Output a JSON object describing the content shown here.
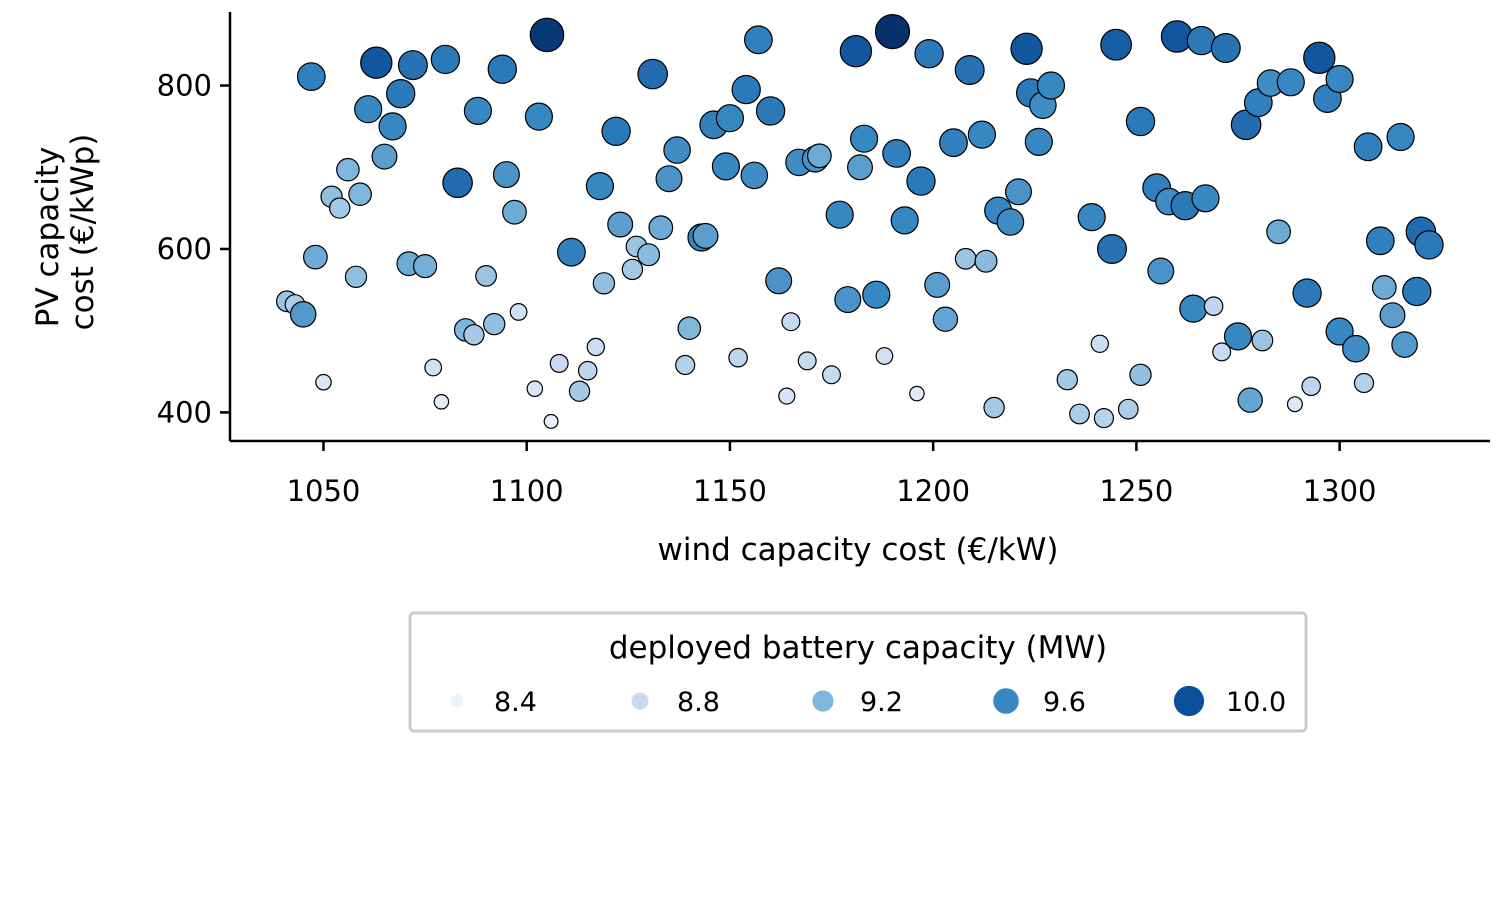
{
  "chart_data": {
    "type": "scatter",
    "xlabel": "wind capacity cost (€/kW)",
    "ylabel_lines": [
      "PV capacity",
      "cost (€/kWp)"
    ],
    "xlim": [
      1027,
      1337
    ],
    "ylim": [
      365,
      890
    ],
    "x_ticks": [
      1050,
      1100,
      1150,
      1200,
      1250,
      1300
    ],
    "y_ticks": [
      400,
      600,
      800
    ],
    "grid": false,
    "legend": {
      "title": "deployed battery capacity (MW)",
      "placement": "bottom-center",
      "entries": [
        {
          "label": "8.4",
          "value": 8.4
        },
        {
          "label": "8.8",
          "value": 8.8
        },
        {
          "label": "9.2",
          "value": 9.2
        },
        {
          "label": "9.6",
          "value": 9.6
        },
        {
          "label": "10.0",
          "value": 10.0
        }
      ]
    },
    "colors": {
      "8.3": "#f7fbff",
      "8.4": "#eaf2fb",
      "8.8": "#c6dbef",
      "9.2": "#7fb6db",
      "9.6": "#3787c2",
      "10.0": "#0b4f9a",
      "10.2": "#08306b",
      "edge": "#000000",
      "axis": "#000000",
      "legend_border": "#cccccc"
    },
    "value_range": [
      8.3,
      10.2
    ],
    "points": [
      [
        1041,
        536,
        9.05
      ],
      [
        1043,
        532,
        8.95
      ],
      [
        1045,
        520,
        9.45
      ],
      [
        1047,
        811,
        9.65
      ],
      [
        1048,
        590,
        9.3
      ],
      [
        1050,
        437,
        8.6
      ],
      [
        1052,
        664,
        9.1
      ],
      [
        1054,
        650,
        9.0
      ],
      [
        1056,
        697,
        9.2
      ],
      [
        1058,
        566,
        9.1
      ],
      [
        1059,
        667,
        9.2
      ],
      [
        1061,
        771,
        9.6
      ],
      [
        1063,
        828,
        9.95
      ],
      [
        1065,
        713,
        9.4
      ],
      [
        1067,
        750,
        9.6
      ],
      [
        1069,
        790,
        9.7
      ],
      [
        1071,
        582,
        9.3
      ],
      [
        1072,
        825,
        9.75
      ],
      [
        1075,
        579,
        9.25
      ],
      [
        1077,
        455,
        8.7
      ],
      [
        1079,
        413,
        8.5
      ],
      [
        1080,
        832,
        9.7
      ],
      [
        1083,
        681,
        9.8
      ],
      [
        1085,
        501,
        9.2
      ],
      [
        1087,
        495,
        9.0
      ],
      [
        1088,
        769,
        9.6
      ],
      [
        1090,
        567,
        9.05
      ],
      [
        1092,
        508,
        9.1
      ],
      [
        1094,
        820,
        9.7
      ],
      [
        1095,
        691,
        9.5
      ],
      [
        1097,
        645,
        9.3
      ],
      [
        1098,
        523,
        8.7
      ],
      [
        1102,
        429,
        8.6
      ],
      [
        1103,
        762,
        9.6
      ],
      [
        1105,
        862,
        10.15
      ],
      [
        1106,
        389,
        8.45
      ],
      [
        1108,
        460,
        8.8
      ],
      [
        1111,
        596,
        9.65
      ],
      [
        1113,
        426,
        9.0
      ],
      [
        1115,
        451,
        8.85
      ],
      [
        1117,
        480,
        8.75
      ],
      [
        1118,
        677,
        9.6
      ],
      [
        1119,
        558,
        9.1
      ],
      [
        1122,
        744,
        9.7
      ],
      [
        1123,
        630,
        9.4
      ],
      [
        1126,
        575,
        9.0
      ],
      [
        1127,
        603,
        9.05
      ],
      [
        1130,
        593,
        9.15
      ],
      [
        1131,
        814,
        9.8
      ],
      [
        1133,
        626,
        9.3
      ],
      [
        1135,
        686,
        9.5
      ],
      [
        1137,
        721,
        9.55
      ],
      [
        1139,
        458,
        8.9
      ],
      [
        1140,
        503,
        9.2
      ],
      [
        1143,
        614,
        9.6
      ],
      [
        1144,
        616,
        9.4
      ],
      [
        1146,
        752,
        9.65
      ],
      [
        1149,
        701,
        9.6
      ],
      [
        1150,
        760,
        9.6
      ],
      [
        1152,
        467,
        8.85
      ],
      [
        1154,
        795,
        9.7
      ],
      [
        1156,
        690,
        9.55
      ],
      [
        1157,
        856,
        9.65
      ],
      [
        1160,
        769,
        9.7
      ],
      [
        1162,
        561,
        9.5
      ],
      [
        1164,
        420,
        8.65
      ],
      [
        1165,
        511,
        8.8
      ],
      [
        1167,
        706,
        9.55
      ],
      [
        1169,
        463,
        8.8
      ],
      [
        1171,
        710,
        9.5
      ],
      [
        1172,
        714,
        9.3
      ],
      [
        1175,
        446,
        8.8
      ],
      [
        1177,
        642,
        9.6
      ],
      [
        1179,
        538,
        9.5
      ],
      [
        1181,
        842,
        9.95
      ],
      [
        1182,
        700,
        9.4
      ],
      [
        1183,
        735,
        9.6
      ],
      [
        1186,
        544,
        9.6
      ],
      [
        1188,
        469,
        8.7
      ],
      [
        1190,
        866,
        10.2
      ],
      [
        1191,
        717,
        9.65
      ],
      [
        1193,
        635,
        9.6
      ],
      [
        1196,
        423,
        8.5
      ],
      [
        1197,
        683,
        9.7
      ],
      [
        1199,
        839,
        9.7
      ],
      [
        1201,
        556,
        9.4
      ],
      [
        1203,
        514,
        9.35
      ],
      [
        1205,
        730,
        9.65
      ],
      [
        1208,
        588,
        9.05
      ],
      [
        1209,
        819,
        9.75
      ],
      [
        1212,
        740,
        9.6
      ],
      [
        1213,
        585,
        9.15
      ],
      [
        1215,
        406,
        9.0
      ],
      [
        1216,
        647,
        9.6
      ],
      [
        1219,
        633,
        9.55
      ],
      [
        1221,
        670,
        9.5
      ],
      [
        1223,
        845,
        9.95
      ],
      [
        1224,
        791,
        9.7
      ],
      [
        1227,
        776,
        9.55
      ],
      [
        1226,
        731,
        9.6
      ],
      [
        1229,
        800,
        9.6
      ],
      [
        1233,
        440,
        9.0
      ],
      [
        1236,
        398,
        8.95
      ],
      [
        1239,
        639,
        9.6
      ],
      [
        1241,
        484,
        8.75
      ],
      [
        1242,
        393,
        8.9
      ],
      [
        1244,
        600,
        9.75
      ],
      [
        1245,
        850,
        9.9
      ],
      [
        1248,
        404,
        8.95
      ],
      [
        1251,
        756,
        9.7
      ],
      [
        1251,
        446,
        9.1
      ],
      [
        1255,
        675,
        9.65
      ],
      [
        1256,
        573,
        9.5
      ],
      [
        1258,
        658,
        9.55
      ],
      [
        1260,
        860,
        9.95
      ],
      [
        1262,
        653,
        9.7
      ],
      [
        1264,
        527,
        9.6
      ],
      [
        1266,
        855,
        9.7
      ],
      [
        1267,
        662,
        9.6
      ],
      [
        1269,
        530,
        8.85
      ],
      [
        1271,
        474,
        8.8
      ],
      [
        1272,
        846,
        9.75
      ],
      [
        1275,
        493,
        9.6
      ],
      [
        1277,
        752,
        9.8
      ],
      [
        1278,
        415,
        9.35
      ],
      [
        1280,
        779,
        9.65
      ],
      [
        1281,
        488,
        9.05
      ],
      [
        1283,
        803,
        9.55
      ],
      [
        1285,
        621,
        9.3
      ],
      [
        1288,
        804,
        9.6
      ],
      [
        1289,
        410,
        8.55
      ],
      [
        1292,
        546,
        9.7
      ],
      [
        1293,
        432,
        8.85
      ],
      [
        1295,
        834,
        9.95
      ],
      [
        1297,
        784,
        9.65
      ],
      [
        1300,
        808,
        9.6
      ],
      [
        1300,
        499,
        9.6
      ],
      [
        1304,
        478,
        9.55
      ],
      [
        1306,
        436,
        8.9
      ],
      [
        1307,
        725,
        9.65
      ],
      [
        1310,
        610,
        9.65
      ],
      [
        1311,
        553,
        9.3
      ],
      [
        1313,
        519,
        9.4
      ],
      [
        1315,
        737,
        9.6
      ],
      [
        1316,
        483,
        9.45
      ],
      [
        1319,
        548,
        9.7
      ],
      [
        1320,
        621,
        9.8
      ],
      [
        1322,
        605,
        9.7
      ]
    ]
  }
}
